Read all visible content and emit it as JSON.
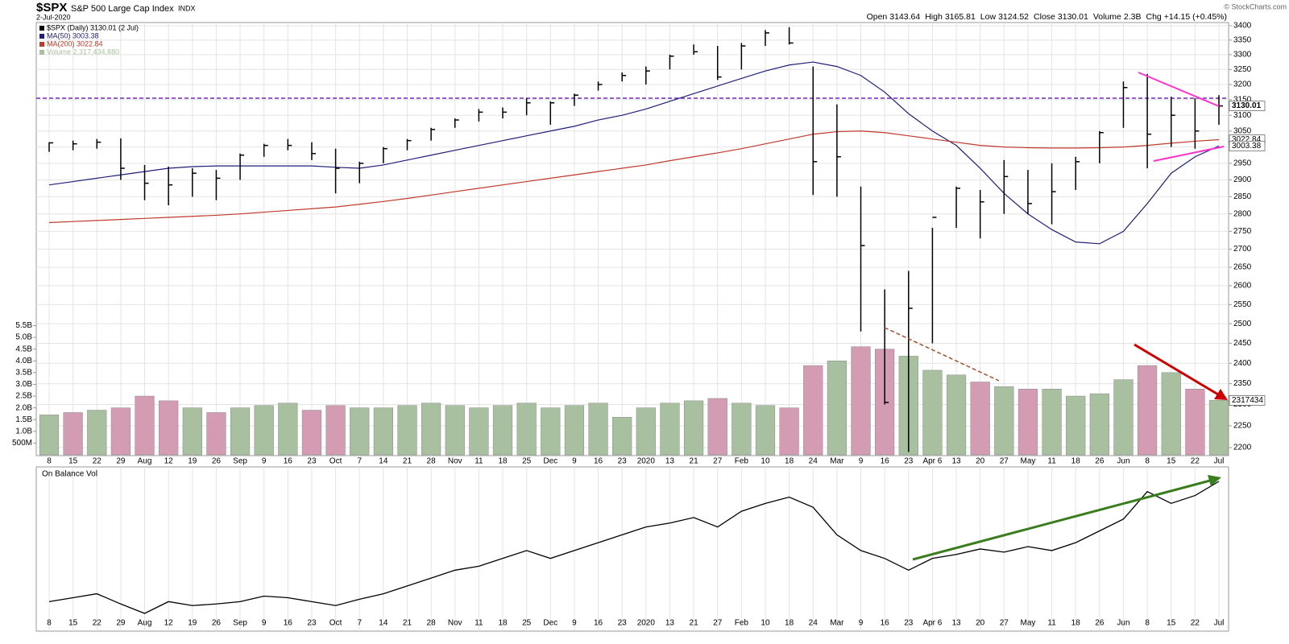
{
  "chart_data": {
    "type": "ohlc",
    "title": "$SPX",
    "subtitle": "S&P 500 Large Cap Index",
    "exchange": "INDX",
    "date": "2-Jul-2020",
    "copyright": "© StockCharts.com",
    "quote": [
      {
        "name": "Open",
        "value": "3143.64"
      },
      {
        "name": "High",
        "value": "3165.81"
      },
      {
        "name": "Low",
        "value": "3124.52"
      },
      {
        "name": "Close",
        "value": "3130.01"
      },
      {
        "name": "Volume",
        "value": "2.3B"
      },
      {
        "name": "Chg",
        "value": "+14.15 (+0.45%)"
      }
    ],
    "name": "$SPX (Daily) 3130.01 (2 Jul)",
    "color": "#000000",
    "categories": [
      "8",
      "15",
      "22",
      "29",
      "Aug",
      "12",
      "19",
      "26",
      "Sep",
      "9",
      "16",
      "23",
      "Oct",
      "7",
      "14",
      "21",
      "28",
      "Nov",
      "11",
      "18",
      "25",
      "Dec",
      "9",
      "16",
      "23",
      "2020",
      "13",
      "21",
      "27",
      "Feb",
      "10",
      "18",
      "24",
      "Mar",
      "9",
      "16",
      "23",
      "Apr 6",
      "13",
      "20",
      "27",
      "May",
      "11",
      "18",
      "26",
      "Jun",
      "8",
      "15",
      "22",
      "Jul"
    ],
    "high": [
      3015,
      3020,
      3025,
      3027,
      2945,
      2940,
      2935,
      2930,
      2980,
      3010,
      3025,
      3015,
      2995,
      2955,
      3000,
      3025,
      3060,
      3090,
      3120,
      3125,
      3155,
      3145,
      3170,
      3210,
      3240,
      3260,
      3300,
      3335,
      3330,
      3340,
      3385,
      3395,
      3260,
      3135,
      2880,
      2590,
      2640,
      2760,
      2880,
      2870,
      2960,
      2930,
      2950,
      2970,
      3050,
      3210,
      3235,
      3160,
      3155,
      3165
    ],
    "low": [
      2985,
      2990,
      2995,
      2900,
      2840,
      2825,
      2850,
      2840,
      2900,
      2970,
      2990,
      2960,
      2860,
      2890,
      2950,
      2990,
      3020,
      3060,
      3080,
      3090,
      3100,
      3070,
      3130,
      3180,
      3210,
      3200,
      3250,
      3300,
      3215,
      3250,
      3330,
      3335,
      2855,
      2850,
      2480,
      2300,
      2190,
      2450,
      2760,
      2730,
      2800,
      2800,
      2770,
      2870,
      2950,
      3060,
      2935,
      3000,
      2995,
      3070
    ],
    "close": [
      3013,
      3010,
      3015,
      2935,
      2890,
      2885,
      2920,
      2905,
      2975,
      3005,
      3005,
      2980,
      2935,
      2950,
      2995,
      3020,
      3055,
      3085,
      3110,
      3110,
      3140,
      3140,
      3165,
      3200,
      3230,
      3245,
      3295,
      3310,
      3225,
      3330,
      3375,
      3340,
      2955,
      2970,
      2710,
      2305,
      2540,
      2790,
      2875,
      2835,
      2910,
      2830,
      2865,
      2955,
      3045,
      3190,
      3040,
      3100,
      3050,
      3130
    ],
    "series": [
      {
        "name": "MA(50) 3003.38",
        "color": "#1f1f7a",
        "values": [
          2885,
          2895,
          2905,
          2915,
          2925,
          2935,
          2940,
          2942,
          2942,
          2942,
          2942,
          2942,
          2938,
          2935,
          2945,
          2960,
          2975,
          2990,
          3005,
          3020,
          3035,
          3050,
          3065,
          3085,
          3100,
          3120,
          3145,
          3170,
          3195,
          3220,
          3245,
          3265,
          3275,
          3260,
          3230,
          3175,
          3105,
          3050,
          3005,
          2935,
          2860,
          2800,
          2755,
          2720,
          2715,
          2750,
          2830,
          2920,
          2970,
          3003.38
        ]
      },
      {
        "name": "MA(200) 3022.84",
        "color": "#c0392b",
        "values": [
          2775,
          2778,
          2781,
          2784,
          2787,
          2790,
          2793,
          2796,
          2800,
          2805,
          2810,
          2815,
          2820,
          2828,
          2836,
          2845,
          2855,
          2865,
          2875,
          2885,
          2895,
          2905,
          2915,
          2925,
          2935,
          2945,
          2958,
          2970,
          2982,
          2995,
          3010,
          3025,
          3040,
          3048,
          3050,
          3045,
          3035,
          3025,
          3015,
          3005,
          3000,
          2998,
          2997,
          2997,
          2998,
          3000,
          3005,
          3012,
          3018,
          3022.84
        ]
      }
    ],
    "ylim": [
      2200,
      3400
    ],
    "yticks": [
      2200,
      2250,
      2300,
      2350,
      2400,
      2450,
      2500,
      2550,
      2600,
      2650,
      2700,
      2750,
      2800,
      2850,
      2900,
      2950,
      3000,
      3050,
      3100,
      3150,
      3200,
      3250,
      3300,
      3350,
      3400
    ],
    "log_scale": true,
    "grid": true,
    "hline": 3155,
    "hline_color": "#7b1fd1",
    "last_labels": [
      {
        "value": 3130.01,
        "label": "3130.01"
      },
      {
        "value": 3022.84,
        "label": "3022.84"
      },
      {
        "value": 3003.38,
        "label": "3003.38"
      }
    ],
    "volume": {
      "name": "Volume 2,317,434,880",
      "up_color": "#a9c0a0",
      "down_color": "#d49cb2",
      "values": [
        1.7,
        1.8,
        1.9,
        2.0,
        2.5,
        2.3,
        2.0,
        1.8,
        2.0,
        2.1,
        2.2,
        1.9,
        2.1,
        2.0,
        2.0,
        2.1,
        2.2,
        2.1,
        2.0,
        2.1,
        2.2,
        2.0,
        2.1,
        2.2,
        1.6,
        2.0,
        2.2,
        2.3,
        2.4,
        2.2,
        2.1,
        2.0,
        3.8,
        4.0,
        4.6,
        4.5,
        4.2,
        3.6,
        3.4,
        3.1,
        2.9,
        2.8,
        2.8,
        2.5,
        2.6,
        3.2,
        3.8,
        3.5,
        2.8,
        2.31743488
      ],
      "ylim": [
        0,
        18.4
      ],
      "yticks": [
        {
          "value": 0.5,
          "label": "500M"
        },
        {
          "value": 1,
          "label": "1.0B"
        },
        {
          "value": 1.5,
          "label": "1.5B"
        },
        {
          "value": 2,
          "label": "2.0B"
        },
        {
          "value": 2.5,
          "label": "2.5B"
        },
        {
          "value": 3,
          "label": "3.0B"
        },
        {
          "value": 3.5,
          "label": "3.5B"
        },
        {
          "value": 4,
          "label": "4.0B"
        },
        {
          "value": 4.5,
          "label": "4.5B"
        },
        {
          "value": 5,
          "label": "5.0B"
        },
        {
          "value": 5.5,
          "label": "5.5B"
        }
      ],
      "last_label": {
        "value": 2.31743488,
        "label": "2317434"
      }
    },
    "obv": {
      "title": "On Balance Vol",
      "color": "#000000",
      "values": [
        55,
        60,
        65,
        52,
        40,
        55,
        50,
        52,
        55,
        62,
        60,
        55,
        50,
        58,
        65,
        75,
        85,
        95,
        100,
        110,
        120,
        110,
        120,
        130,
        140,
        150,
        155,
        162,
        150,
        170,
        180,
        188,
        175,
        140,
        120,
        110,
        95,
        110,
        115,
        122,
        118,
        125,
        120,
        130,
        145,
        160,
        195,
        180,
        190,
        208
      ]
    }
  }
}
